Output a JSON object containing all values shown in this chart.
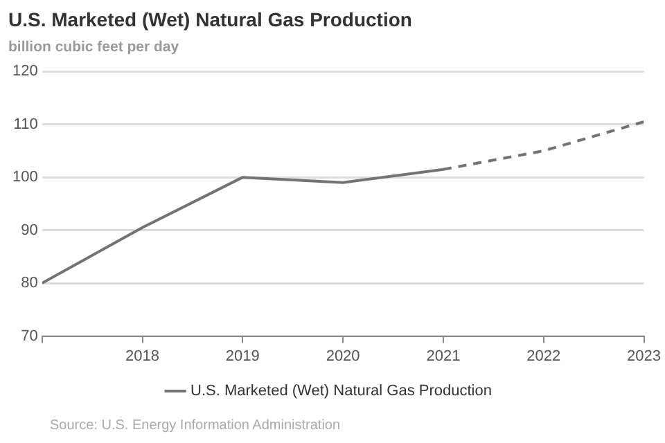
{
  "chart_data": {
    "type": "line",
    "title": "U.S. Marketed (Wet) Natural Gas Production",
    "subtitle": "billion cubic feet per day",
    "annotations": [
      "Source: U.S. Energy Information Administration"
    ],
    "series": [
      {
        "name": "U.S. Marketed (Wet) Natural Gas Production",
        "color": "#737373",
        "line_style": "solid",
        "x": [
          2017,
          2018,
          2019,
          2020,
          2021
        ],
        "values": [
          80,
          90.5,
          100,
          99,
          101.5
        ]
      },
      {
        "color": "#737373",
        "line_style": "dashed",
        "x": [
          2021,
          2022,
          2023
        ],
        "values": [
          101.5,
          105,
          110.5
        ]
      }
    ],
    "xlim": [
      2017,
      2023
    ],
    "xticks": [
      {
        "value": 2017,
        "label": null
      },
      2018,
      2019,
      2020,
      2021,
      2022,
      2023
    ],
    "ylim": [
      70,
      120
    ],
    "yticks": [
      70,
      80,
      90,
      100,
      110,
      120
    ],
    "grid": "y",
    "legend": "bottom",
    "marker": "none"
  }
}
